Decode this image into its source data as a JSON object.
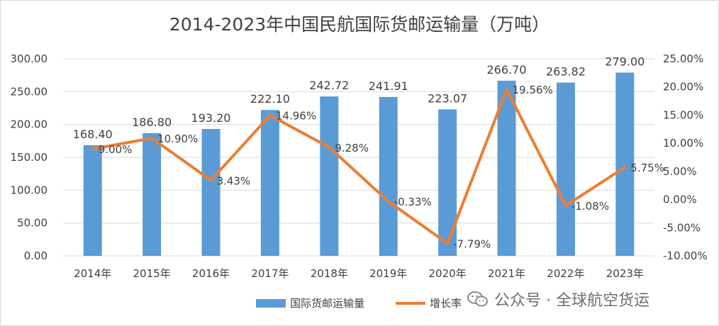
{
  "chart_data": {
    "type": "bar",
    "title": "2014-2023年中国民航国际货邮运输量（万吨）",
    "categories": [
      "2014年",
      "2015年",
      "2016年",
      "2017年",
      "2018年",
      "2019年",
      "2020年",
      "2021年",
      "2022年",
      "2023年"
    ],
    "series": [
      {
        "name": "国际货邮运输量",
        "type": "bar",
        "axis": "left",
        "values": [
          168.4,
          186.8,
          193.2,
          222.1,
          242.72,
          241.91,
          223.07,
          266.7,
          263.82,
          279.0
        ],
        "labels": [
          "168.40",
          "186.80",
          "193.20",
          "222.10",
          "242.72",
          "241.91",
          "223.07",
          "266.70",
          "263.82",
          "279.00"
        ]
      },
      {
        "name": "增长率",
        "type": "line",
        "axis": "right",
        "values": [
          9.0,
          10.9,
          3.43,
          14.96,
          9.28,
          -0.33,
          -7.79,
          19.56,
          -1.08,
          5.75
        ],
        "labels": [
          "9.00%",
          "10.90%",
          "3.43%",
          "14.96%",
          "9.28%",
          "-0.33%",
          "-7.79%",
          "19.56%",
          "-1.08%",
          "5.75%"
        ]
      }
    ],
    "y_left": {
      "ylim": [
        0,
        300
      ],
      "ticks": [
        "0.00",
        "50.00",
        "100.00",
        "150.00",
        "200.00",
        "250.00",
        "300.00"
      ]
    },
    "y_right": {
      "ylim": [
        -10,
        25
      ],
      "ticks": [
        "-10.00%",
        "-5.00%",
        "0.00%",
        "5.00%",
        "10.00%",
        "15.00%",
        "20.00%",
        "25.00%"
      ]
    },
    "grid": true,
    "legend": "bottom",
    "colors": {
      "bar": "#5b9bd5",
      "line": "#ed7d31",
      "grid": "#d9d9d9",
      "text": "#404040"
    }
  },
  "watermark": {
    "text": "公众号 · 全球航空货运",
    "icon": "wechat-icon"
  }
}
